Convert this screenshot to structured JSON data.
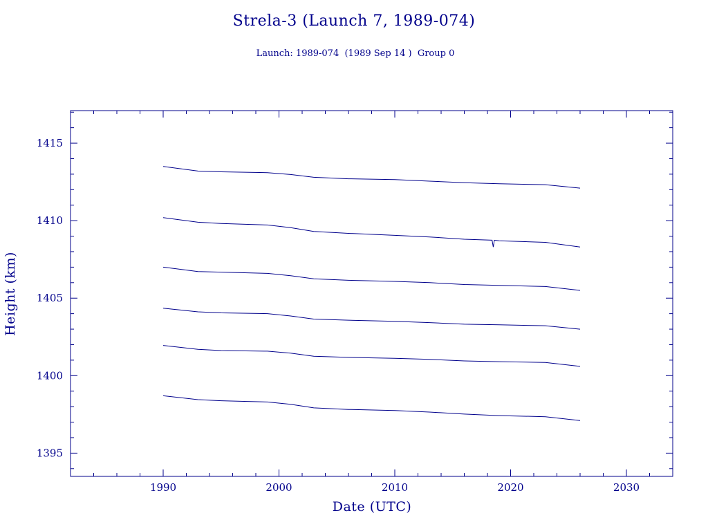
{
  "colors": {
    "ink": "#00008b",
    "background": "#ffffff"
  },
  "chart_data": {
    "type": "line",
    "title": "Strela-3 (Launch 7, 1989-074)",
    "subtitle": "Launch: 1989-074  (1989 Sep 14 )  Group 0",
    "xlabel": "Date (UTC)",
    "ylabel": "Height (km)",
    "xlim": [
      1982,
      2034
    ],
    "ylim": [
      1393.5,
      1417.1
    ],
    "xticks": [
      1990,
      2000,
      2010,
      2020,
      2030
    ],
    "yticks": [
      1395,
      1400,
      1405,
      1410,
      1415
    ],
    "x_minor_step": 2,
    "y_minor_step": 1,
    "grid": false,
    "legend": "none",
    "series": [
      {
        "x": [
          1990,
          1993,
          1995,
          1999,
          2001,
          2003,
          2006,
          2010,
          2013,
          2016,
          2019,
          2023,
          2026
        ],
        "y": [
          1413.5,
          1413.2,
          1413.15,
          1413.1,
          1412.98,
          1412.8,
          1412.7,
          1412.65,
          1412.55,
          1412.45,
          1412.38,
          1412.32,
          1412.1
        ]
      },
      {
        "x": [
          1990,
          1993,
          1995,
          1999,
          2001,
          2003,
          2006,
          2010,
          2013,
          2016,
          2018.4,
          2018.5,
          2018.6,
          2019,
          2023,
          2026
        ],
        "y": [
          1410.2,
          1409.9,
          1409.82,
          1409.72,
          1409.55,
          1409.3,
          1409.18,
          1409.05,
          1408.95,
          1408.8,
          1408.74,
          1408.3,
          1408.74,
          1408.7,
          1408.6,
          1408.3
        ]
      },
      {
        "x": [
          1990,
          1993,
          1995,
          1999,
          2001,
          2003,
          2006,
          2010,
          2013,
          2016,
          2019,
          2023,
          2026
        ],
        "y": [
          1407.0,
          1406.72,
          1406.68,
          1406.6,
          1406.45,
          1406.25,
          1406.15,
          1406.08,
          1406.0,
          1405.88,
          1405.82,
          1405.75,
          1405.5
        ]
      },
      {
        "x": [
          1990,
          1993,
          1995,
          1999,
          2001,
          2003,
          2006,
          2010,
          2013,
          2016,
          2019,
          2023,
          2026
        ],
        "y": [
          1404.35,
          1404.12,
          1404.05,
          1404.0,
          1403.85,
          1403.65,
          1403.58,
          1403.5,
          1403.42,
          1403.32,
          1403.28,
          1403.22,
          1403.0
        ]
      },
      {
        "x": [
          1990,
          1993,
          1995,
          1999,
          2001,
          2003,
          2006,
          2010,
          2013,
          2016,
          2019,
          2023,
          2026
        ],
        "y": [
          1401.95,
          1401.7,
          1401.62,
          1401.58,
          1401.45,
          1401.25,
          1401.18,
          1401.12,
          1401.05,
          1400.95,
          1400.9,
          1400.85,
          1400.6
        ]
      },
      {
        "x": [
          1990,
          1993,
          1995,
          1999,
          2001,
          2003,
          2006,
          2010,
          2013,
          2016,
          2019,
          2023,
          2026
        ],
        "y": [
          1398.7,
          1398.45,
          1398.38,
          1398.3,
          1398.15,
          1397.92,
          1397.82,
          1397.75,
          1397.65,
          1397.52,
          1397.42,
          1397.35,
          1397.1
        ]
      }
    ]
  }
}
